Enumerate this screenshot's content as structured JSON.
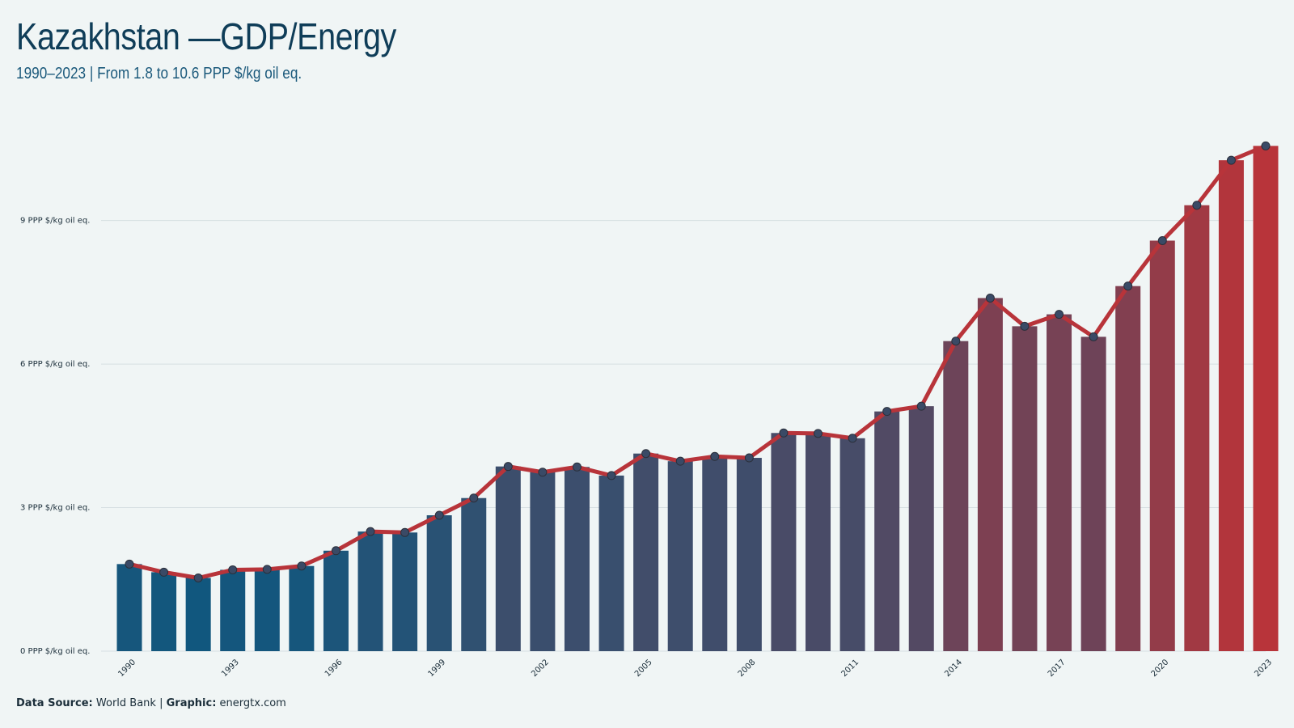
{
  "header": {
    "title": "Kazakhstan —GDP/Energy",
    "subtitle": "1990–2023 | From 1.8 to 10.6 PPP $/kg oil eq."
  },
  "footer": {
    "source_label": "Data Source:",
    "source_value": "World Bank",
    "separator": "|",
    "graphic_label": "Graphic:",
    "graphic_value": "energtx.com"
  },
  "colors": {
    "background": "#f0f5f5",
    "bar_start": "#11577e",
    "bar_end": "#b8343a",
    "line": "#b8343a",
    "marker_fill": "#3a4a66",
    "grid": "#d6dfe2",
    "text": "#0f3d58"
  },
  "chart_data": {
    "type": "bar",
    "title": "Kazakhstan —GDP/Energy",
    "xlabel": "",
    "ylabel": "",
    "categories": [
      "1990",
      "1991",
      "1992",
      "1993",
      "1994",
      "1995",
      "1996",
      "1997",
      "1998",
      "1999",
      "2000",
      "2001",
      "2002",
      "2003",
      "2004",
      "2005",
      "2006",
      "2007",
      "2008",
      "2009",
      "2010",
      "2011",
      "2012",
      "2013",
      "2014",
      "2015",
      "2016",
      "2017",
      "2018",
      "2019",
      "2020",
      "2021",
      "2022",
      "2023"
    ],
    "values": [
      1.82,
      1.65,
      1.53,
      1.7,
      1.71,
      1.78,
      2.1,
      2.5,
      2.48,
      2.84,
      3.2,
      3.86,
      3.74,
      3.85,
      3.67,
      4.13,
      3.97,
      4.07,
      4.04,
      4.56,
      4.55,
      4.45,
      5.01,
      5.12,
      6.48,
      7.38,
      6.79,
      7.04,
      6.57,
      7.63,
      8.58,
      9.32,
      10.26,
      10.56
    ],
    "overlay_line": true,
    "ylim": [
      0,
      10.6
    ],
    "yticks": [
      0,
      3,
      6,
      9
    ],
    "ytick_labels": [
      "0 PPP $/kg oil eq.",
      "3 PPP $/kg oil eq.",
      "6 PPP $/kg oil eq.",
      "9 PPP $/kg oil eq."
    ],
    "xtick_labels": [
      "1990",
      "1993",
      "1996",
      "1999",
      "2002",
      "2005",
      "2008",
      "2011",
      "2014",
      "2017",
      "2020",
      "2023"
    ],
    "grid": true,
    "legend": "none"
  }
}
